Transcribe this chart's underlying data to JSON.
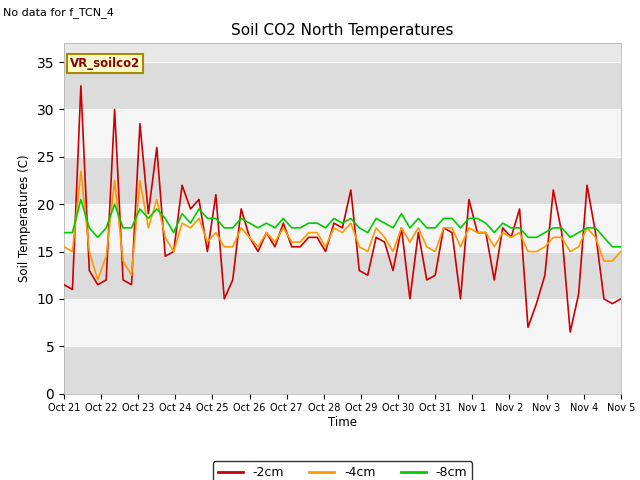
{
  "title": "Soil CO2 North Temperatures",
  "subtitle": "No data for f_TCN_4",
  "xlabel": "Time",
  "ylabel": "Soil Temperatures (C)",
  "ylim": [
    0,
    37
  ],
  "yticks": [
    0,
    5,
    10,
    15,
    20,
    25,
    30,
    35
  ],
  "box_label": "VR_soilco2",
  "x_labels": [
    "Oct 21",
    "Oct 22",
    "Oct 23",
    "Oct 24",
    "Oct 25",
    "Oct 26",
    "Oct 27",
    "Oct 28",
    "Oct 29",
    "Oct 30",
    "Oct 31",
    "Nov 1",
    "Nov 2",
    "Nov 3",
    "Nov 4",
    "Nov 5"
  ],
  "color_2cm": "#cc0000",
  "color_4cm": "#ff9900",
  "color_8cm": "#00cc00",
  "legend_labels": [
    "-2cm",
    "-4cm",
    "-8cm"
  ],
  "bg_color": "#ffffff",
  "plot_bg": "#e8e8e8",
  "band_light": "#f5f5f5",
  "band_dark": "#dcdcdc",
  "series_2cm": [
    11.5,
    11.0,
    32.5,
    13.0,
    11.5,
    12.0,
    30.0,
    12.0,
    11.5,
    28.5,
    19.0,
    26.0,
    14.5,
    15.0,
    22.0,
    19.5,
    20.5,
    15.0,
    21.0,
    10.0,
    12.0,
    19.5,
    16.5,
    15.0,
    17.0,
    15.5,
    18.0,
    15.5,
    15.5,
    16.5,
    16.5,
    15.0,
    18.0,
    17.5,
    21.5,
    13.0,
    12.5,
    16.5,
    16.0,
    13.0,
    17.5,
    10.0,
    17.0,
    12.0,
    12.5,
    17.5,
    17.0,
    10.0,
    20.5,
    17.0,
    17.0,
    12.0,
    17.5,
    16.5,
    19.5,
    7.0,
    9.5,
    12.5,
    21.5,
    17.0,
    6.5,
    10.5,
    22.0,
    17.0,
    10.0,
    9.5,
    10.0
  ],
  "series_4cm": [
    15.5,
    15.0,
    23.5,
    15.0,
    12.0,
    14.5,
    22.5,
    14.0,
    12.5,
    22.5,
    17.5,
    20.5,
    16.5,
    15.0,
    18.0,
    17.5,
    18.5,
    16.0,
    17.0,
    15.5,
    15.5,
    17.5,
    16.5,
    15.5,
    17.0,
    16.0,
    17.5,
    16.0,
    16.0,
    17.0,
    17.0,
    15.5,
    17.5,
    17.0,
    18.0,
    15.5,
    15.0,
    17.5,
    16.5,
    15.0,
    17.5,
    16.0,
    17.5,
    15.5,
    15.0,
    17.5,
    17.5,
    15.5,
    17.5,
    17.0,
    17.0,
    15.5,
    17.0,
    16.5,
    17.0,
    15.0,
    15.0,
    15.5,
    16.5,
    16.5,
    15.0,
    15.5,
    17.5,
    16.5,
    14.0,
    14.0,
    15.0
  ],
  "series_8cm": [
    17.0,
    17.0,
    20.5,
    17.5,
    16.5,
    17.5,
    20.0,
    17.5,
    17.5,
    19.5,
    18.5,
    19.5,
    18.5,
    17.0,
    19.0,
    18.0,
    19.5,
    18.5,
    18.5,
    17.5,
    17.5,
    18.5,
    18.0,
    17.5,
    18.0,
    17.5,
    18.5,
    17.5,
    17.5,
    18.0,
    18.0,
    17.5,
    18.5,
    18.0,
    18.5,
    17.5,
    17.0,
    18.5,
    18.0,
    17.5,
    19.0,
    17.5,
    18.5,
    17.5,
    17.5,
    18.5,
    18.5,
    17.5,
    18.5,
    18.5,
    18.0,
    17.0,
    18.0,
    17.5,
    17.5,
    16.5,
    16.5,
    17.0,
    17.5,
    17.5,
    16.5,
    17.0,
    17.5,
    17.5,
    16.5,
    15.5,
    15.5
  ]
}
